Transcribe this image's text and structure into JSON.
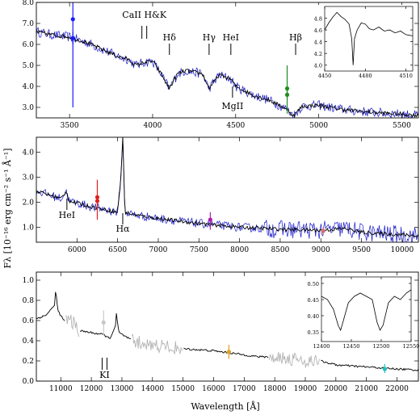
{
  "figure": {
    "ylabel": "Fλ [10⁻¹⁶ erg cm⁻² s⁻¹ Å⁻¹]",
    "xlabel": "Wavelength [Å]"
  },
  "chart_data": [
    {
      "type": "line",
      "panel": "UVB",
      "xlim": [
        3300,
        5600
      ],
      "ylim": [
        2.5,
        8.0
      ],
      "x_ticks": [
        3500,
        4000,
        4500,
        5000,
        5500
      ],
      "y_ticks": [
        3.0,
        4.0,
        5.0,
        6.0,
        7.0,
        8.0
      ],
      "x_tick_labels": [
        "3500",
        "4000",
        "4500",
        "5000",
        "5500"
      ],
      "y_tick_labels": [
        "3.0",
        "4.0",
        "5.0",
        "6.0",
        "7.0",
        "8.0"
      ],
      "colors": {
        "observed": "#1a1acc",
        "model": "#000000"
      },
      "continuum": {
        "x": [
          3300,
          3400,
          3500,
          3600,
          3700,
          3800,
          3850,
          3900,
          3950,
          4000,
          4050,
          4100,
          4150,
          4200,
          4300,
          4340,
          4400,
          4470,
          4500,
          4600,
          4700,
          4800,
          4850,
          4900,
          5000,
          5100,
          5200,
          5300,
          5400,
          5500,
          5600
        ],
        "y": [
          6.6,
          6.45,
          6.35,
          6.1,
          5.75,
          5.4,
          5.3,
          5.0,
          5.15,
          5.2,
          4.6,
          3.9,
          4.6,
          4.75,
          4.6,
          3.9,
          4.55,
          4.35,
          4.0,
          3.6,
          3.35,
          2.95,
          2.6,
          3.05,
          3.1,
          2.95,
          2.85,
          2.78,
          2.72,
          2.68,
          2.62
        ]
      },
      "annotations": [
        {
          "label": "CaII H&K",
          "x": 3950
        },
        {
          "label": "Hδ",
          "x": 4101
        },
        {
          "label": "Hγ",
          "x": 4340
        },
        {
          "label": "HeI",
          "x": 4471
        },
        {
          "label": "MgII",
          "x": 4481
        },
        {
          "label": "Hβ",
          "x": 4861
        }
      ],
      "photometry": [
        {
          "x": 3520,
          "y": 7.2,
          "err_lo": 3.0,
          "err_hi": 8.0,
          "color": "#1a1aff"
        },
        {
          "x": 3520,
          "y": 6.3,
          "err_lo": 6.0,
          "err_hi": 6.6,
          "color": "#1a1aff"
        },
        {
          "x": 4810,
          "y": 3.9,
          "err_lo": 2.7,
          "err_hi": 5.0,
          "color": "#1f8c1f"
        },
        {
          "x": 4810,
          "y": 3.6,
          "err_lo": 3.4,
          "err_hi": 3.8,
          "color": "#1f8c1f"
        }
      ],
      "inset": {
        "xlim": [
          4450,
          4515
        ],
        "ylim": [
          3.9,
          5.0
        ],
        "x_ticks": [
          4450,
          4480,
          4510
        ],
        "y_ticks": [
          4.0,
          4.2,
          4.4,
          4.6,
          4.8
        ],
        "x_tick_labels": [
          "4450",
          "4480",
          "4510"
        ],
        "y_tick_labels": [
          "4.0",
          "4.2",
          "4.4",
          "4.6",
          "4.8"
        ],
        "x": [
          4450,
          4453,
          4456,
          4459,
          4462,
          4465,
          4468,
          4470,
          4471,
          4472,
          4474,
          4477,
          4480,
          4483,
          4486,
          4490,
          4494,
          4498,
          4502,
          4506,
          4510,
          4515
        ],
        "y": [
          4.6,
          4.72,
          4.82,
          4.9,
          4.83,
          4.78,
          4.7,
          4.45,
          4.0,
          4.45,
          4.6,
          4.72,
          4.7,
          4.62,
          4.6,
          4.65,
          4.58,
          4.6,
          4.55,
          4.58,
          4.52,
          4.5
        ]
      }
    },
    {
      "type": "line",
      "panel": "VIS",
      "xlim": [
        5500,
        10200
      ],
      "ylim": [
        0.4,
        4.6
      ],
      "x_ticks": [
        6000,
        6500,
        7000,
        7500,
        8000,
        8500,
        9000,
        9500,
        10000
      ],
      "y_ticks": [
        1.0,
        2.0,
        3.0,
        4.0
      ],
      "x_tick_labels": [
        "6000",
        "6500",
        "7000",
        "7500",
        "8000",
        "8500",
        "9000",
        "9500",
        "10000"
      ],
      "y_tick_labels": [
        "1.0",
        "2.0",
        "3.0",
        "4.0"
      ],
      "colors": {
        "observed": "#1a1acc",
        "model": "#000000"
      },
      "continuum": {
        "x": [
          5500,
          5800,
          5876,
          5900,
          6200,
          6500,
          6540,
          6563,
          6590,
          6700,
          7000,
          7500,
          8000,
          8500,
          9000,
          9300,
          9500,
          9700,
          10000,
          10200
        ],
        "y": [
          2.45,
          2.15,
          2.45,
          2.05,
          1.8,
          1.6,
          3.0,
          4.6,
          1.6,
          1.5,
          1.35,
          1.15,
          1.0,
          0.92,
          0.88,
          0.95,
          0.8,
          0.75,
          0.7,
          0.65
        ]
      },
      "annotations": [
        {
          "label": "HeI",
          "x": 5876
        },
        {
          "label": "Hα",
          "x": 6563
        }
      ],
      "photometry": [
        {
          "x": 6250,
          "y": 2.2,
          "err_lo": 1.3,
          "err_hi": 2.9,
          "color": "#e02020"
        },
        {
          "x": 6250,
          "y": 2.05,
          "err_lo": 1.9,
          "err_hi": 2.2,
          "color": "#e02020"
        },
        {
          "x": 7640,
          "y": 1.3,
          "err_lo": 0.9,
          "err_hi": 1.6,
          "color": "#b01cb0"
        },
        {
          "x": 9030,
          "y": 0.85,
          "err_lo": 0.7,
          "err_hi": 1.0,
          "color": "#d87070"
        }
      ]
    },
    {
      "type": "line",
      "panel": "NIR",
      "xlim": [
        10200,
        22700
      ],
      "ylim": [
        0.0,
        1.08
      ],
      "x_ticks": [
        11000,
        12000,
        13000,
        14000,
        15000,
        16000,
        17000,
        18000,
        19000,
        20000,
        21000,
        22000
      ],
      "y_ticks": [
        0.0,
        0.2,
        0.4,
        0.6,
        0.8,
        1.0
      ],
      "x_tick_labels": [
        "11000",
        "12000",
        "13000",
        "14000",
        "15000",
        "16000",
        "17000",
        "18000",
        "19000",
        "20000",
        "21000",
        "22000"
      ],
      "y_tick_labels": [
        "0.0",
        "0.2",
        "0.4",
        "0.6",
        "0.8",
        "1.0"
      ],
      "colors": {
        "observed": "#000000",
        "telluric": "#b4b4b4"
      },
      "continuum": {
        "x": [
          10200,
          10500,
          10800,
          10830,
          10900,
          11100,
          11300,
          11600,
          12000,
          12400,
          12600,
          12800,
          12818,
          12900,
          13400,
          14000,
          15000,
          16000,
          17000,
          17500,
          18200,
          19000,
          19500,
          20000,
          21000,
          22000,
          22700
        ],
        "y": [
          0.62,
          0.65,
          0.75,
          0.92,
          0.7,
          0.6,
          0.62,
          0.5,
          0.48,
          0.46,
          0.42,
          0.55,
          0.67,
          0.48,
          0.39,
          0.36,
          0.32,
          0.3,
          0.26,
          0.24,
          0.24,
          0.2,
          0.2,
          0.16,
          0.14,
          0.12,
          0.11
        ]
      },
      "telluric_ranges": [
        [
          11150,
          11600
        ],
        [
          13300,
          15000
        ],
        [
          17800,
          19500
        ]
      ],
      "annotations": [
        {
          "label": "KI",
          "x": 12432
        }
      ],
      "photometry": [
        {
          "x": 12400,
          "y": 0.58,
          "err_lo": 0.45,
          "err_hi": 0.7,
          "color": "#c8c8c8"
        },
        {
          "x": 16500,
          "y": 0.29,
          "err_lo": 0.22,
          "err_hi": 0.36,
          "color": "#e0a020"
        },
        {
          "x": 21600,
          "y": 0.12,
          "err_lo": 0.08,
          "err_hi": 0.17,
          "color": "#20c0c0"
        }
      ],
      "inset": {
        "xlim": [
          12400,
          12550
        ],
        "ylim": [
          0.32,
          0.52
        ],
        "x_ticks": [
          12400,
          12450,
          12500,
          12550
        ],
        "y_ticks": [
          0.35,
          0.4,
          0.45,
          0.5
        ],
        "x_tick_labels": [
          "12400",
          "12450",
          "12500",
          "12550"
        ],
        "y_tick_labels": [
          "0.35",
          "0.40",
          "0.45",
          "0.50"
        ],
        "x": [
          12400,
          12410,
          12420,
          12428,
          12432,
          12436,
          12445,
          12455,
          12465,
          12475,
          12485,
          12493,
          12498,
          12503,
          12512,
          12522,
          12532,
          12542,
          12550
        ],
        "y": [
          0.46,
          0.45,
          0.42,
          0.37,
          0.355,
          0.38,
          0.44,
          0.46,
          0.47,
          0.46,
          0.45,
          0.38,
          0.355,
          0.37,
          0.44,
          0.46,
          0.45,
          0.47,
          0.48
        ]
      }
    }
  ]
}
